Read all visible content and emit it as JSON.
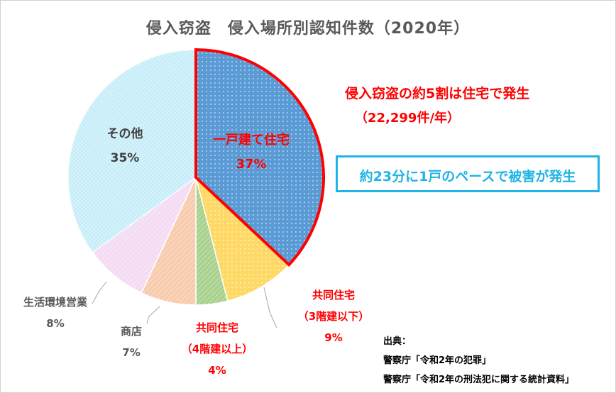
{
  "chart_data": {
    "type": "pie",
    "title": "侵入窃盗　侵入場所別認知件数（2020年）",
    "slices": [
      {
        "label": "一戸建て住宅",
        "value": 37,
        "value_label": "37%",
        "color": "#5b9bd5",
        "highlight": true
      },
      {
        "label": "共同住宅\n（3階建以下）",
        "value": 9,
        "value_label": "9%",
        "color": "#ffd966",
        "highlight": false
      },
      {
        "label": "共同住宅\n（4階建以上）",
        "value": 4,
        "value_label": "4%",
        "color": "#a9d18e",
        "highlight": false
      },
      {
        "label": "商店",
        "value": 7,
        "value_label": "7%",
        "color": "#f8cbad",
        "highlight": false
      },
      {
        "label": "生活環境営業",
        "value": 8,
        "value_label": "8%",
        "color": "#f4dcf4",
        "highlight": false
      },
      {
        "label": "その他",
        "value": 35,
        "value_label": "35%",
        "color": "#d6f3fb",
        "highlight": false
      }
    ],
    "start_angle_deg": 0,
    "direction": "clockwise",
    "legend": "none",
    "highlight_color": "#ff0000"
  },
  "annotations": {
    "headline": "侵入窃盗の約5割は住宅で発生",
    "headline_sub": "（22,299件/年）",
    "note": "約23分に1戸のペースで被害が発生"
  },
  "source": {
    "heading": "出典：",
    "lines": [
      "警察庁「令和2年の犯罪」",
      "警察庁「令和2年の刑法犯に関する統計資料」"
    ]
  }
}
